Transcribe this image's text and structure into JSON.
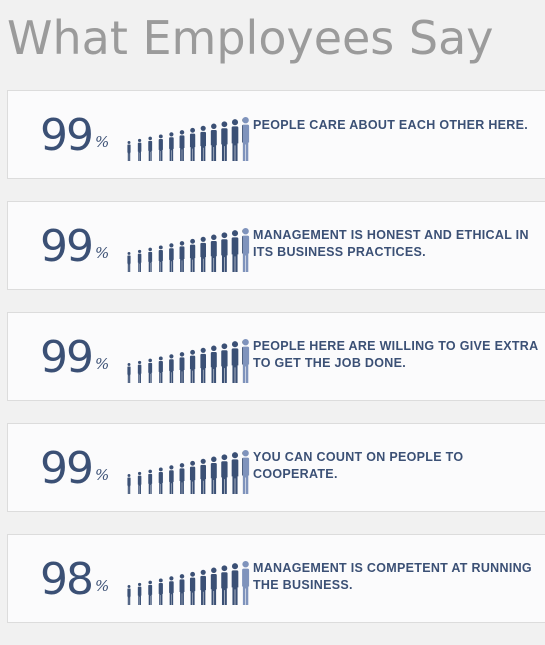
{
  "page": {
    "title": "What Employees Say"
  },
  "colors": {
    "accent": "#3b5075",
    "accent_light": "#7f93bc",
    "title_gray": "#9b9b9b",
    "card_bg": "#fbfbfc",
    "page_bg": "#f1f1f1"
  },
  "stats": [
    {
      "value": "99",
      "unit": "%",
      "percent": 99,
      "statement": "PEOPLE CARE ABOUT EACH OTHER HERE."
    },
    {
      "value": "99",
      "unit": "%",
      "percent": 99,
      "statement": "MANAGEMENT IS HONEST AND ETHICAL IN ITS BUSINESS PRACTICES."
    },
    {
      "value": "99",
      "unit": "%",
      "percent": 99,
      "statement": "PEOPLE HERE ARE WILLING TO GIVE EXTRA TO GET THE JOB DONE."
    },
    {
      "value": "99",
      "unit": "%",
      "percent": 99,
      "statement": "YOU CAN COUNT ON PEOPLE TO COOPERATE."
    },
    {
      "value": "98",
      "unit": "%",
      "percent": 98,
      "statement": "MANAGEMENT IS COMPETENT AT RUNNING THE BUSINESS."
    }
  ]
}
